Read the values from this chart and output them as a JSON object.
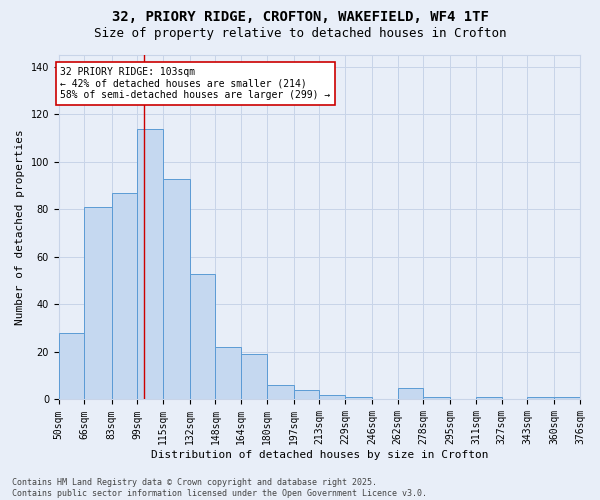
{
  "title_line1": "32, PRIORY RIDGE, CROFTON, WAKEFIELD, WF4 1TF",
  "title_line2": "Size of property relative to detached houses in Crofton",
  "xlabel": "Distribution of detached houses by size in Crofton",
  "ylabel": "Number of detached properties",
  "bin_edges": [
    50,
    66,
    83,
    99,
    115,
    132,
    148,
    164,
    180,
    197,
    213,
    229,
    246,
    262,
    278,
    295,
    311,
    327,
    343,
    360,
    376
  ],
  "bar_labels": [
    "50sqm",
    "66sqm",
    "83sqm",
    "99sqm",
    "115sqm",
    "132sqm",
    "148sqm",
    "164sqm",
    "180sqm",
    "197sqm",
    "213sqm",
    "229sqm",
    "246sqm",
    "262sqm",
    "278sqm",
    "295sqm",
    "311sqm",
    "327sqm",
    "343sqm",
    "360sqm",
    "376sqm"
  ],
  "bar_heights": [
    28,
    81,
    87,
    114,
    93,
    53,
    22,
    19,
    6,
    4,
    2,
    1,
    0,
    5,
    1,
    0,
    1,
    0,
    1,
    1
  ],
  "bar_color": "#c5d8f0",
  "bar_edge_color": "#5b9bd5",
  "grid_color": "#c8d4e8",
  "background_color": "#e8eef8",
  "vline_x": 103,
  "vline_color": "#cc0000",
  "annotation_text": "32 PRIORY RIDGE: 103sqm\n← 42% of detached houses are smaller (214)\n58% of semi-detached houses are larger (299) →",
  "annotation_box_color": "#ffffff",
  "annotation_box_edge": "#cc0000",
  "ylim": [
    0,
    145
  ],
  "yticks": [
    0,
    20,
    40,
    60,
    80,
    100,
    120,
    140
  ],
  "footer_text": "Contains HM Land Registry data © Crown copyright and database right 2025.\nContains public sector information licensed under the Open Government Licence v3.0.",
  "title_fontsize": 10,
  "subtitle_fontsize": 9,
  "axis_label_fontsize": 8,
  "tick_fontsize": 7,
  "annotation_fontsize": 7,
  "footer_fontsize": 6
}
